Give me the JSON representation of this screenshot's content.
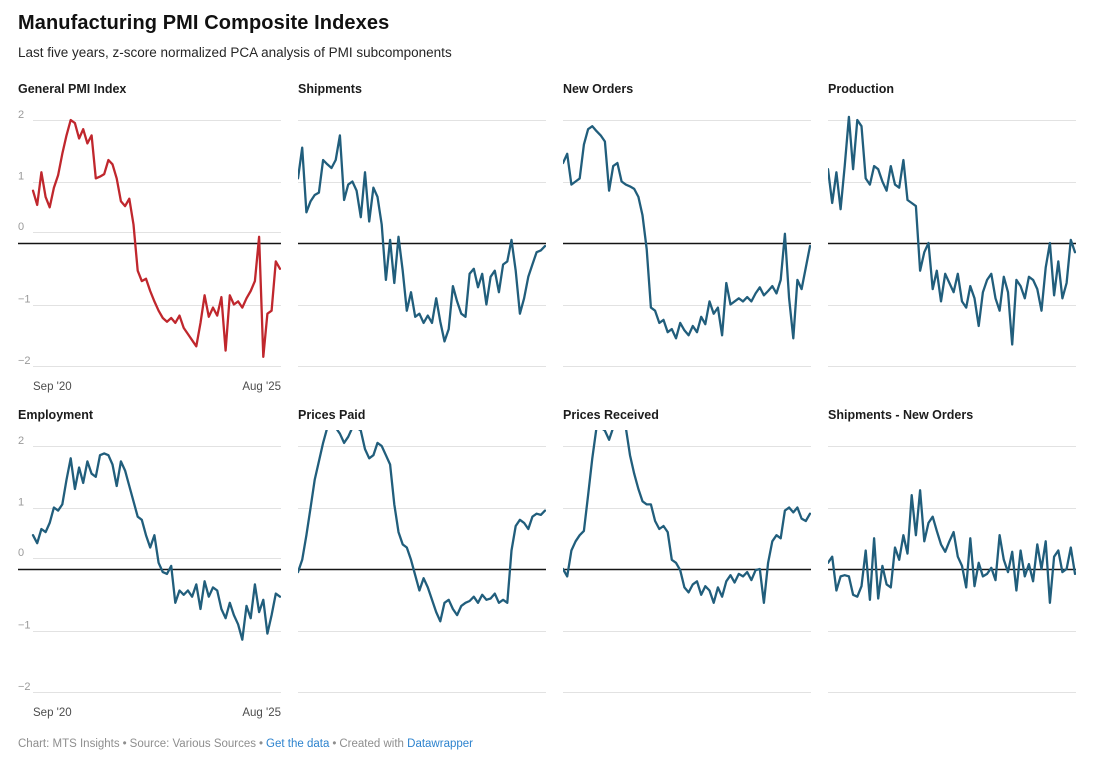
{
  "header": {
    "title": "Manufacturing PMI Composite Indexes",
    "subtitle": "Last five years, z-score normalized PCA analysis of PMI subcomponents"
  },
  "footer": {
    "credit": "Chart: MTS Insights",
    "source": "Source: Various Sources",
    "get_data_link": "Get the data",
    "created_with": "Created with",
    "datawrapper_link": "Datawrapper",
    "separator": "•"
  },
  "colors": {
    "highlight_red": "#c0272d",
    "line_blue": "#215e7c",
    "grid_light": "#e2e2e2",
    "zero_line": "#141414",
    "tick_label": "#9a9a9a",
    "link_blue": "#2d83ce"
  },
  "axis": {
    "y_ticks": [
      2,
      1,
      0,
      -1,
      -2
    ],
    "ylim": [
      -2,
      2
    ],
    "x_start_label": "Sep '20",
    "x_end_label": "Aug '25",
    "grid": "horizontal-only",
    "x_labels_shown_on": "first column only"
  },
  "chart_data": [
    {
      "type": "line",
      "title": "General PMI Index",
      "color": "#c0272d",
      "x_start": "Sep '20",
      "x_end": "Aug '25",
      "ylim": [
        -2,
        2
      ],
      "values": [
        0.85,
        0.62,
        1.15,
        0.75,
        0.58,
        0.9,
        1.1,
        1.45,
        1.75,
        2.0,
        1.95,
        1.7,
        1.85,
        1.62,
        1.75,
        1.05,
        1.08,
        1.12,
        1.35,
        1.28,
        1.05,
        0.68,
        0.6,
        0.72,
        0.3,
        -0.45,
        -0.62,
        -0.58,
        -0.78,
        -0.95,
        -1.1,
        -1.22,
        -1.28,
        -1.22,
        -1.3,
        -1.18,
        -1.38,
        -1.48,
        -1.58,
        -1.68,
        -1.3,
        -0.85,
        -1.2,
        -1.05,
        -1.18,
        -0.88,
        -1.75,
        -0.85,
        -1.0,
        -0.95,
        -1.05,
        -0.9,
        -0.78,
        -0.62,
        0.1,
        -1.85,
        -1.15,
        -1.1,
        -0.3,
        -0.42
      ]
    },
    {
      "type": "line",
      "title": "Shipments",
      "color": "#215e7c",
      "x_start": "Sep '20",
      "x_end": "Aug '25",
      "ylim": [
        -2,
        2
      ],
      "values": [
        1.05,
        1.55,
        0.5,
        0.68,
        0.78,
        0.82,
        1.35,
        1.28,
        1.22,
        1.35,
        1.75,
        0.7,
        0.95,
        1.0,
        0.85,
        0.42,
        1.15,
        0.35,
        0.9,
        0.75,
        0.3,
        -0.6,
        0.05,
        -0.65,
        0.1,
        -0.45,
        -1.1,
        -0.8,
        -1.2,
        -1.15,
        -1.3,
        -1.18,
        -1.3,
        -0.9,
        -1.28,
        -1.6,
        -1.4,
        -0.7,
        -0.95,
        -1.15,
        -1.2,
        -0.5,
        -0.42,
        -0.72,
        -0.5,
        -1.0,
        -0.55,
        -0.45,
        -0.8,
        -0.35,
        -0.3,
        0.05,
        -0.45,
        -1.15,
        -0.9,
        -0.55,
        -0.35,
        -0.15,
        -0.12,
        -0.05
      ]
    },
    {
      "type": "line",
      "title": "New Orders",
      "color": "#215e7c",
      "x_start": "Sep '20",
      "x_end": "Aug '25",
      "ylim": [
        -2,
        2
      ],
      "values": [
        1.3,
        1.45,
        0.95,
        1.0,
        1.05,
        1.6,
        1.85,
        1.9,
        1.82,
        1.75,
        1.65,
        0.85,
        1.25,
        1.3,
        1.0,
        0.95,
        0.92,
        0.88,
        0.75,
        0.45,
        -0.1,
        -1.05,
        -1.1,
        -1.3,
        -1.25,
        -1.45,
        -1.4,
        -1.55,
        -1.3,
        -1.42,
        -1.5,
        -1.35,
        -1.45,
        -1.2,
        -1.32,
        -0.95,
        -1.15,
        -1.05,
        -1.5,
        -0.65,
        -1.0,
        -0.95,
        -0.9,
        -0.95,
        -0.88,
        -0.95,
        -0.82,
        -0.72,
        -0.85,
        -0.78,
        -0.7,
        -0.82,
        -0.6,
        0.15,
        -0.9,
        -1.55,
        -0.6,
        -0.75,
        -0.4,
        -0.05
      ]
    },
    {
      "type": "line",
      "title": "Production",
      "color": "#215e7c",
      "x_start": "Sep '20",
      "x_end": "Aug '25",
      "ylim": [
        -2,
        2
      ],
      "values": [
        1.2,
        0.65,
        1.15,
        0.55,
        1.25,
        2.05,
        1.2,
        2.0,
        1.9,
        1.05,
        0.95,
        1.25,
        1.2,
        1.0,
        0.85,
        1.25,
        0.95,
        0.9,
        1.35,
        0.7,
        0.65,
        0.6,
        -0.45,
        -0.15,
        0.0,
        -0.75,
        -0.45,
        -0.95,
        -0.5,
        -0.65,
        -0.8,
        -0.5,
        -0.95,
        -1.05,
        -0.7,
        -0.9,
        -1.35,
        -0.8,
        -0.6,
        -0.5,
        -0.9,
        -1.1,
        -0.55,
        -0.8,
        -1.65,
        -0.6,
        -0.7,
        -0.9,
        -0.55,
        -0.6,
        -0.75,
        -1.1,
        -0.4,
        0.0,
        -0.85,
        -0.3,
        -0.9,
        -0.65,
        0.05,
        -0.15
      ]
    },
    {
      "type": "line",
      "title": "Employment",
      "color": "#215e7c",
      "x_start": "Sep '20",
      "x_end": "Aug '25",
      "ylim": [
        -2,
        2
      ],
      "values": [
        0.55,
        0.42,
        0.65,
        0.6,
        0.75,
        1.0,
        0.95,
        1.05,
        1.45,
        1.8,
        1.3,
        1.65,
        1.4,
        1.75,
        1.55,
        1.5,
        1.85,
        1.88,
        1.85,
        1.7,
        1.35,
        1.75,
        1.6,
        1.35,
        1.1,
        0.85,
        0.8,
        0.55,
        0.35,
        0.55,
        0.1,
        -0.05,
        -0.08,
        0.05,
        -0.55,
        -0.35,
        -0.42,
        -0.35,
        -0.45,
        -0.25,
        -0.65,
        -0.2,
        -0.45,
        -0.3,
        -0.35,
        -0.65,
        -0.8,
        -0.55,
        -0.75,
        -0.9,
        -1.15,
        -0.6,
        -0.8,
        -0.25,
        -0.7,
        -0.5,
        -1.05,
        -0.75,
        -0.4,
        -0.45
      ]
    },
    {
      "type": "line",
      "title": "Prices Paid",
      "color": "#215e7c",
      "x_start": "Sep '20",
      "x_end": "Aug '25",
      "ylim": [
        -2,
        2
      ],
      "values": [
        -0.05,
        0.15,
        0.55,
        1.0,
        1.45,
        1.75,
        2.05,
        2.3,
        2.3,
        2.3,
        2.2,
        2.05,
        2.15,
        2.3,
        2.3,
        2.25,
        1.95,
        1.8,
        1.85,
        2.05,
        2.0,
        1.85,
        1.7,
        1.05,
        0.6,
        0.4,
        0.35,
        0.15,
        -0.1,
        -0.35,
        -0.15,
        -0.3,
        -0.5,
        -0.7,
        -0.85,
        -0.55,
        -0.5,
        -0.65,
        -0.75,
        -0.6,
        -0.55,
        -0.52,
        -0.45,
        -0.55,
        -0.42,
        -0.5,
        -0.48,
        -0.4,
        -0.55,
        -0.5,
        -0.55,
        0.3,
        0.7,
        0.8,
        0.75,
        0.65,
        0.85,
        0.9,
        0.88,
        0.95
      ]
    },
    {
      "type": "line",
      "title": "Prices Received",
      "color": "#215e7c",
      "x_start": "Sep '20",
      "x_end": "Aug '25",
      "ylim": [
        -2,
        2
      ],
      "values": [
        0.0,
        -0.12,
        0.3,
        0.45,
        0.55,
        0.62,
        1.2,
        1.8,
        2.3,
        2.3,
        2.25,
        2.1,
        2.3,
        2.3,
        2.3,
        2.3,
        1.85,
        1.55,
        1.3,
        1.1,
        1.05,
        1.05,
        0.78,
        0.65,
        0.7,
        0.6,
        0.15,
        0.1,
        -0.02,
        -0.3,
        -0.38,
        -0.25,
        -0.2,
        -0.42,
        -0.28,
        -0.35,
        -0.55,
        -0.3,
        -0.45,
        -0.2,
        -0.1,
        -0.22,
        -0.08,
        -0.12,
        -0.05,
        -0.18,
        -0.02,
        0.0,
        -0.55,
        0.1,
        0.45,
        0.55,
        0.5,
        0.95,
        1.0,
        0.92,
        1.0,
        0.82,
        0.78,
        0.9
      ]
    },
    {
      "type": "line",
      "title": "Shipments - New Orders",
      "color": "#215e7c",
      "x_start": "Sep '20",
      "x_end": "Aug '25",
      "ylim": [
        -2,
        2
      ],
      "values": [
        0.1,
        0.2,
        -0.35,
        -0.12,
        -0.1,
        -0.12,
        -0.42,
        -0.45,
        -0.28,
        0.3,
        -0.5,
        0.5,
        -0.48,
        0.05,
        -0.25,
        -0.3,
        0.35,
        0.15,
        0.55,
        0.25,
        1.2,
        0.55,
        1.28,
        0.45,
        0.75,
        0.85,
        0.62,
        0.4,
        0.28,
        0.45,
        0.6,
        0.2,
        0.05,
        -0.3,
        0.5,
        -0.28,
        0.1,
        -0.12,
        -0.08,
        0.02,
        -0.18,
        0.55,
        0.15,
        -0.05,
        0.28,
        -0.35,
        0.3,
        -0.12,
        0.08,
        -0.2,
        0.4,
        0.0,
        0.45,
        -0.55,
        0.2,
        0.3,
        -0.05,
        0.0,
        0.35,
        -0.08
      ]
    }
  ]
}
